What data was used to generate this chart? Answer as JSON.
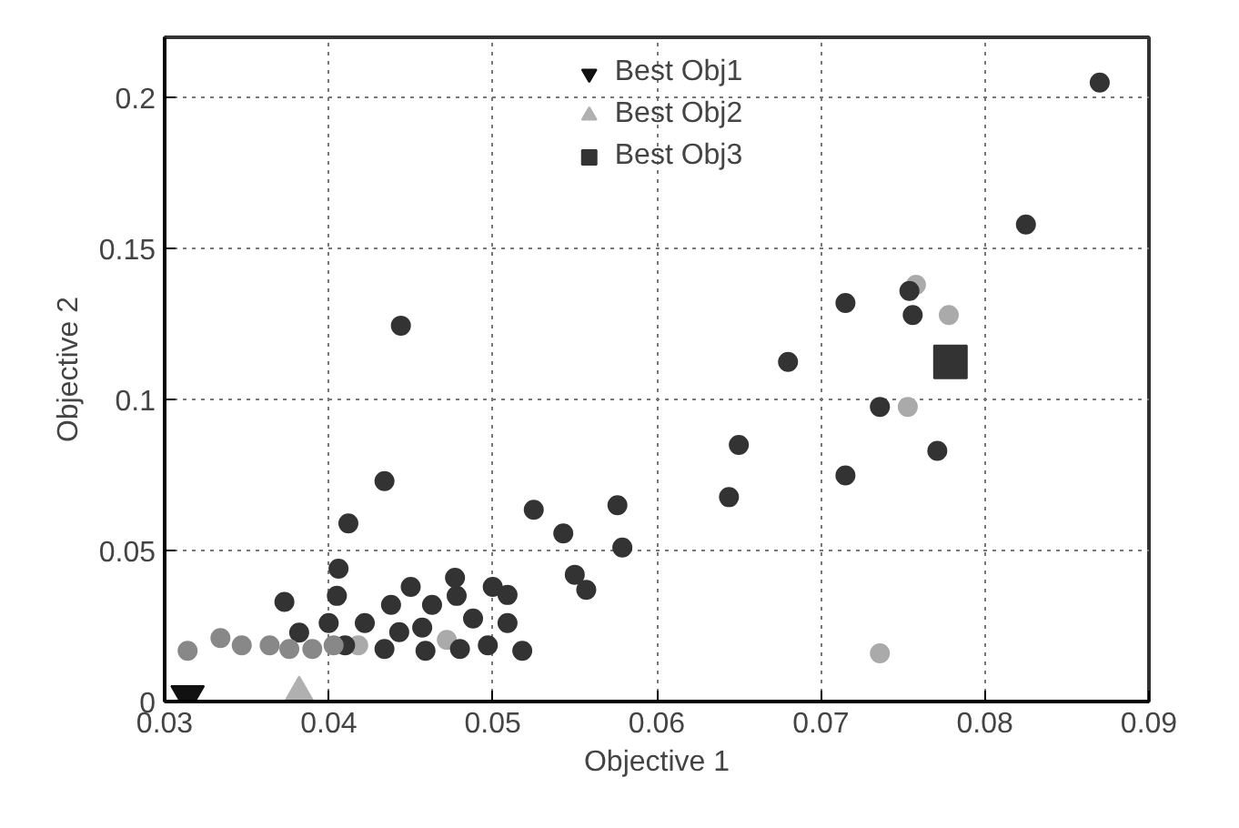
{
  "chart_data": {
    "type": "scatter",
    "xlabel": "Objective 1",
    "ylabel": "Objective 2",
    "xlim": [
      0.03,
      0.09
    ],
    "ylim": [
      0,
      0.22
    ],
    "xticks": [
      0.03,
      0.04,
      0.05,
      0.06,
      0.07,
      0.08,
      0.09
    ],
    "yticks": [
      0,
      0.05,
      0.1,
      0.15,
      0.2
    ],
    "grid": true,
    "legend": "top",
    "series": [
      {
        "color": "#aaaaaa",
        "marker": "circle",
        "x": [
          0.0778,
          0.0753,
          0.0736,
          0.0758,
          0.0418,
          0.0472
        ],
        "values": [
          0.128,
          0.0976,
          0.016,
          0.138,
          0.0186,
          0.0204
        ]
      },
      {
        "color": "#333333",
        "marker": "circle",
        "x": [
          0.087,
          0.0825,
          0.0444,
          0.0434,
          0.0412,
          0.0406,
          0.0525,
          0.0543,
          0.0576,
          0.0579,
          0.055,
          0.0557,
          0.0715,
          0.0756,
          0.068,
          0.0736,
          0.065,
          0.0771,
          0.0644,
          0.0715,
          0.0754,
          0.0405,
          0.0373,
          0.04,
          0.0477,
          0.045,
          0.0463,
          0.0478,
          0.05,
          0.0509,
          0.0422,
          0.0438,
          0.0443,
          0.0457,
          0.0488,
          0.0509,
          0.0497,
          0.0518,
          0.0459,
          0.0434,
          0.048,
          0.041,
          0.0382
        ],
        "values": [
          0.205,
          0.158,
          0.1245,
          0.073,
          0.059,
          0.044,
          0.0635,
          0.0557,
          0.065,
          0.051,
          0.042,
          0.037,
          0.132,
          0.128,
          0.1125,
          0.0976,
          0.085,
          0.083,
          0.0677,
          0.0749,
          0.136,
          0.035,
          0.033,
          0.026,
          0.041,
          0.038,
          0.032,
          0.035,
          0.038,
          0.0353,
          0.026,
          0.032,
          0.023,
          0.0245,
          0.0275,
          0.026,
          0.0186,
          0.0168,
          0.0168,
          0.0174,
          0.0174,
          0.0186,
          0.0228
        ]
      },
      {
        "color": "#888888",
        "marker": "circle",
        "x": [
          0.0314,
          0.0334,
          0.0347,
          0.0364,
          0.0376,
          0.039,
          0.0403
        ],
        "values": [
          0.0168,
          0.021,
          0.0186,
          0.0186,
          0.0174,
          0.0174,
          0.0186
        ]
      },
      {
        "name": "Best Obj1",
        "color": "#111111",
        "marker": "triangle_down",
        "x": [
          0.0314
        ],
        "values": [
          0.002
        ]
      },
      {
        "name": "Best Obj2",
        "color": "#b0b0b0",
        "marker": "triangle",
        "x": [
          0.0382
        ],
        "values": [
          0.002
        ]
      },
      {
        "name": "Best Obj3",
        "color": "#333333",
        "marker": "square",
        "x": [
          0.0779
        ],
        "values": [
          0.1125
        ]
      }
    ]
  }
}
